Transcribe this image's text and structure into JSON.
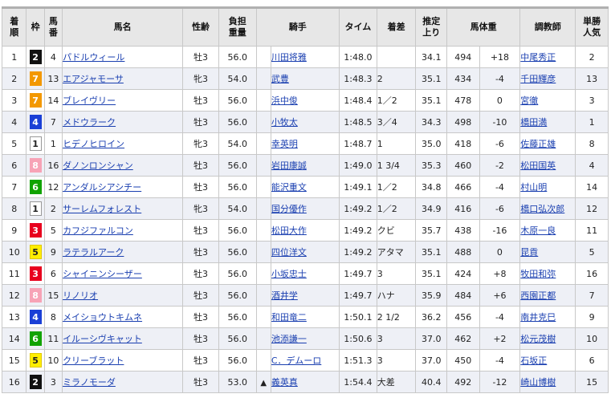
{
  "headers": {
    "rank": "着\n順",
    "waku": "枠",
    "umaban": "馬\n番",
    "name": "馬名",
    "sexage": "性齢",
    "weight": "負担\n重量",
    "jockey": "騎手",
    "time": "タイム",
    "margin": "着差",
    "last3f": "推定\n上り",
    "bodyweight": "馬体重",
    "trainer": "調教師",
    "odds_rank": "単勝\n人気"
  },
  "colors": {
    "link": "#1a3fb0",
    "header_bg": "#e7e7e7",
    "row_alt": "#eef0f6"
  },
  "rows": [
    {
      "rank": "1",
      "waku": "2",
      "umaban": "4",
      "name": "パドルウィール",
      "sexage": "牡3",
      "weight": "56.0",
      "mark": "",
      "jockey": "川田将雅",
      "time": "1:48.0",
      "margin": "",
      "last3f": "34.1",
      "bw": "494",
      "bwdiff": "+18",
      "trainer": "中尾秀正",
      "pop": "2"
    },
    {
      "rank": "2",
      "waku": "7",
      "umaban": "13",
      "name": "エアジャモーサ",
      "sexage": "牝3",
      "weight": "54.0",
      "mark": "",
      "jockey": "武豊",
      "time": "1:48.3",
      "margin": "2",
      "last3f": "35.1",
      "bw": "434",
      "bwdiff": "-4",
      "trainer": "千田輝彦",
      "pop": "13"
    },
    {
      "rank": "3",
      "waku": "7",
      "umaban": "14",
      "name": "ブレイヴリー",
      "sexage": "牡3",
      "weight": "56.0",
      "mark": "",
      "jockey": "浜中俊",
      "time": "1:48.4",
      "margin": "1／2",
      "last3f": "35.1",
      "bw": "478",
      "bwdiff": "0",
      "trainer": "宮徹",
      "pop": "3"
    },
    {
      "rank": "4",
      "waku": "4",
      "umaban": "7",
      "name": "メドウラーク",
      "sexage": "牡3",
      "weight": "56.0",
      "mark": "",
      "jockey": "小牧太",
      "time": "1:48.5",
      "margin": "3／4",
      "last3f": "34.3",
      "bw": "498",
      "bwdiff": "-10",
      "trainer": "橋田満",
      "pop": "1"
    },
    {
      "rank": "5",
      "waku": "1",
      "umaban": "1",
      "name": "ヒデノヒロイン",
      "sexage": "牝3",
      "weight": "54.0",
      "mark": "",
      "jockey": "幸英明",
      "time": "1:48.7",
      "margin": "1",
      "last3f": "35.0",
      "bw": "418",
      "bwdiff": "-6",
      "trainer": "佐藤正雄",
      "pop": "8"
    },
    {
      "rank": "6",
      "waku": "8",
      "umaban": "16",
      "name": "ダノンロンシャン",
      "sexage": "牡3",
      "weight": "56.0",
      "mark": "",
      "jockey": "岩田康誠",
      "time": "1:49.0",
      "margin": "1 3/4",
      "last3f": "35.3",
      "bw": "460",
      "bwdiff": "-2",
      "trainer": "松田国英",
      "pop": "4"
    },
    {
      "rank": "7",
      "waku": "6",
      "umaban": "12",
      "name": "アンダルシアシチー",
      "sexage": "牡3",
      "weight": "56.0",
      "mark": "",
      "jockey": "能沢重文",
      "time": "1:49.1",
      "margin": "1／2",
      "last3f": "34.8",
      "bw": "466",
      "bwdiff": "-4",
      "trainer": "村山明",
      "pop": "14"
    },
    {
      "rank": "8",
      "waku": "1",
      "umaban": "2",
      "name": "サーレムフォレスト",
      "sexage": "牝3",
      "weight": "54.0",
      "mark": "",
      "jockey": "国分優作",
      "time": "1:49.2",
      "margin": "1／2",
      "last3f": "34.9",
      "bw": "416",
      "bwdiff": "-6",
      "trainer": "橋口弘次郎",
      "pop": "12"
    },
    {
      "rank": "9",
      "waku": "3",
      "umaban": "5",
      "name": "カフジファルコン",
      "sexage": "牡3",
      "weight": "56.0",
      "mark": "",
      "jockey": "松田大作",
      "time": "1:49.2",
      "margin": "クビ",
      "last3f": "35.7",
      "bw": "438",
      "bwdiff": "-16",
      "trainer": "木原一良",
      "pop": "11"
    },
    {
      "rank": "10",
      "waku": "5",
      "umaban": "9",
      "name": "ラテラルアーク",
      "sexage": "牡3",
      "weight": "56.0",
      "mark": "",
      "jockey": "四位洋文",
      "time": "1:49.2",
      "margin": "アタマ",
      "last3f": "35.1",
      "bw": "488",
      "bwdiff": "0",
      "trainer": "昆貢",
      "pop": "5"
    },
    {
      "rank": "11",
      "waku": "3",
      "umaban": "6",
      "name": "シャイニンシーザー",
      "sexage": "牡3",
      "weight": "56.0",
      "mark": "",
      "jockey": "小坂忠士",
      "time": "1:49.7",
      "margin": "3",
      "last3f": "35.1",
      "bw": "424",
      "bwdiff": "+8",
      "trainer": "牧田和弥",
      "pop": "16"
    },
    {
      "rank": "12",
      "waku": "8",
      "umaban": "15",
      "name": "リノリオ",
      "sexage": "牡3",
      "weight": "56.0",
      "mark": "",
      "jockey": "酒井学",
      "time": "1:49.7",
      "margin": "ハナ",
      "last3f": "35.9",
      "bw": "484",
      "bwdiff": "+6",
      "trainer": "西園正都",
      "pop": "7"
    },
    {
      "rank": "13",
      "waku": "4",
      "umaban": "8",
      "name": "メイショウトキムネ",
      "sexage": "牡3",
      "weight": "56.0",
      "mark": "",
      "jockey": "和田竜二",
      "time": "1:50.1",
      "margin": "2 1/2",
      "last3f": "36.2",
      "bw": "456",
      "bwdiff": "-4",
      "trainer": "南井克巳",
      "pop": "9"
    },
    {
      "rank": "14",
      "waku": "6",
      "umaban": "11",
      "name": "イルーシヴキャット",
      "sexage": "牡3",
      "weight": "56.0",
      "mark": "",
      "jockey": "池添謙一",
      "time": "1:50.6",
      "margin": "3",
      "last3f": "37.0",
      "bw": "462",
      "bwdiff": "+2",
      "trainer": "松元茂樹",
      "pop": "10"
    },
    {
      "rank": "15",
      "waku": "5",
      "umaban": "10",
      "name": "クリーブラット",
      "sexage": "牡3",
      "weight": "56.0",
      "mark": "",
      "jockey": "C．デムーロ",
      "time": "1:51.3",
      "margin": "3",
      "last3f": "37.0",
      "bw": "450",
      "bwdiff": "-4",
      "trainer": "石坂正",
      "pop": "6"
    },
    {
      "rank": "16",
      "waku": "2",
      "umaban": "3",
      "name": "ミラノモーダ",
      "sexage": "牡3",
      "weight": "53.0",
      "mark": "▲",
      "jockey": "義英真",
      "time": "1:54.4",
      "margin": "大差",
      "last3f": "40.4",
      "bw": "492",
      "bwdiff": "-12",
      "trainer": "崎山博樹",
      "pop": "15"
    }
  ]
}
